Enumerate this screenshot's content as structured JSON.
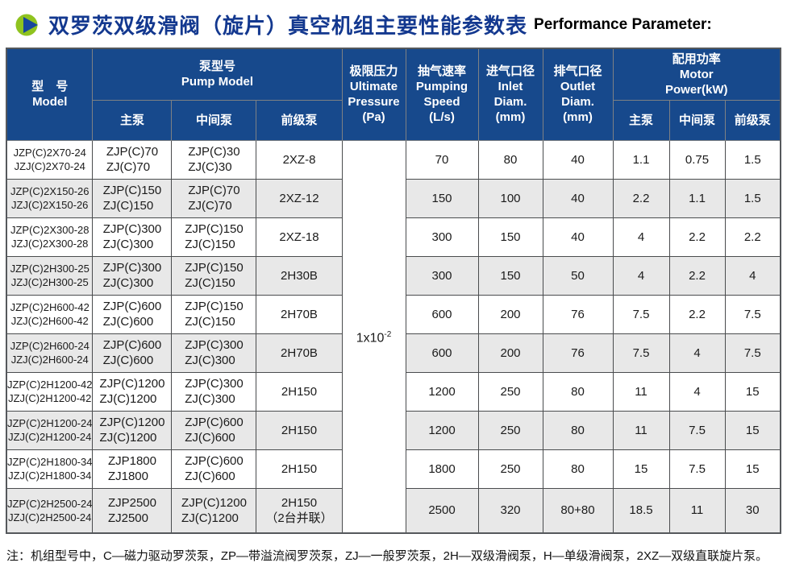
{
  "page": {
    "title_zh": "双罗茨双级滑阀（旋片）真空机组主要性能参数表",
    "title_en": "Performance Parameter:",
    "footnote": "注：机组型号中，C—磁力驱动罗茨泵，ZP—带溢流阀罗茨泵，ZJ—一般罗茨泵，2H—双级滑阀泵，H—单级滑阀泵，2XZ—双级直联旋片泵。"
  },
  "colors": {
    "header_bg": "#17498c",
    "stripe_bg": "#e8e8e8",
    "title_blue": "#13388f",
    "icon_green": "#8fc31f",
    "icon_triangle_blue": "#17469e"
  },
  "icons": {
    "title_bullet": "play-bullet-icon"
  },
  "table": {
    "header": {
      "model": "型　号\nModel",
      "pump_model": "泵型号\nPump Model",
      "main_pump": "主泵",
      "middle_pump": "中间泵",
      "fore_pump": "前级泵",
      "pressure": "极限压力\nUltimate\nPressure\n(Pa)",
      "speed": "抽气速率\nPumping\nSpeed\n(L/s)",
      "inlet": "进气口径\nInlet\nDiam.\n(mm)",
      "outlet": "排气口径\nOutlet\nDiam.\n(mm)",
      "power": "配用功率\nMotor\nPower(kW)"
    },
    "ultimate_pressure": {
      "base": "1x10",
      "exp": "-2"
    },
    "rows": [
      {
        "model": "JZP(C)2X70-24\nJZJ(C)2X70-24",
        "main": "ZJP(C)70\nZJ(C)70",
        "middle": "ZJP(C)30\nZJ(C)30",
        "fore": "2XZ-8",
        "speed": "70",
        "inlet": "80",
        "outlet": "40",
        "p1": "1.1",
        "p2": "0.75",
        "p3": "1.5"
      },
      {
        "model": "JZP(C)2X150-26\nJZJ(C)2X150-26",
        "main": "ZJP(C)150\nZJ(C)150",
        "middle": "ZJP(C)70\nZJ(C)70",
        "fore": "2XZ-12",
        "speed": "150",
        "inlet": "100",
        "outlet": "40",
        "p1": "2.2",
        "p2": "1.1",
        "p3": "1.5"
      },
      {
        "model": "JZP(C)2X300-28\nJZJ(C)2X300-28",
        "main": "ZJP(C)300\nZJ(C)300",
        "middle": "ZJP(C)150\nZJ(C)150",
        "fore": "2XZ-18",
        "speed": "300",
        "inlet": "150",
        "outlet": "40",
        "p1": "4",
        "p2": "2.2",
        "p3": "2.2"
      },
      {
        "model": "JZP(C)2H300-25\nJZJ(C)2H300-25",
        "main": "ZJP(C)300\nZJ(C)300",
        "middle": "ZJP(C)150\nZJ(C)150",
        "fore": "2H30B",
        "speed": "300",
        "inlet": "150",
        "outlet": "50",
        "p1": "4",
        "p2": "2.2",
        "p3": "4"
      },
      {
        "model": "JZP(C)2H600-42\nJZJ(C)2H600-42",
        "main": "ZJP(C)600\nZJ(C)600",
        "middle": "ZJP(C)150\nZJ(C)150",
        "fore": "2H70B",
        "speed": "600",
        "inlet": "200",
        "outlet": "76",
        "p1": "7.5",
        "p2": "2.2",
        "p3": "7.5"
      },
      {
        "model": "JZP(C)2H600-24\nJZJ(C)2H600-24",
        "main": "ZJP(C)600\nZJ(C)600",
        "middle": "ZJP(C)300\nZJ(C)300",
        "fore": "2H70B",
        "speed": "600",
        "inlet": "200",
        "outlet": "76",
        "p1": "7.5",
        "p2": "4",
        "p3": "7.5"
      },
      {
        "model": "JZP(C)2H1200-42\nJZJ(C)2H1200-42",
        "main": "ZJP(C)1200\nZJ(C)1200",
        "middle": "ZJP(C)300\nZJ(C)300",
        "fore": "2H150",
        "speed": "1200",
        "inlet": "250",
        "outlet": "80",
        "p1": "11",
        "p2": "4",
        "p3": "15"
      },
      {
        "model": "JZP(C)2H1200-24\nJZJ(C)2H1200-24",
        "main": "ZJP(C)1200\nZJ(C)1200",
        "middle": "ZJP(C)600\nZJ(C)600",
        "fore": "2H150",
        "speed": "1200",
        "inlet": "250",
        "outlet": "80",
        "p1": "11",
        "p2": "7.5",
        "p3": "15"
      },
      {
        "model": "JZP(C)2H1800-34\nJZJ(C)2H1800-34",
        "main": "ZJP1800\nZJ1800",
        "middle": "ZJP(C)600\nZJ(C)600",
        "fore": "2H150",
        "speed": "1800",
        "inlet": "250",
        "outlet": "80",
        "p1": "15",
        "p2": "7.5",
        "p3": "15"
      },
      {
        "model": "JZP(C)2H2500-24\nJZJ(C)2H2500-24",
        "main": "ZJP2500\nZJ2500",
        "middle": "ZJP(C)1200\nZJ(C)1200",
        "fore": "2H150\n（2台并联）",
        "speed": "2500",
        "inlet": "320",
        "outlet": "80+80",
        "p1": "18.5",
        "p2": "11",
        "p3": "30"
      }
    ]
  }
}
